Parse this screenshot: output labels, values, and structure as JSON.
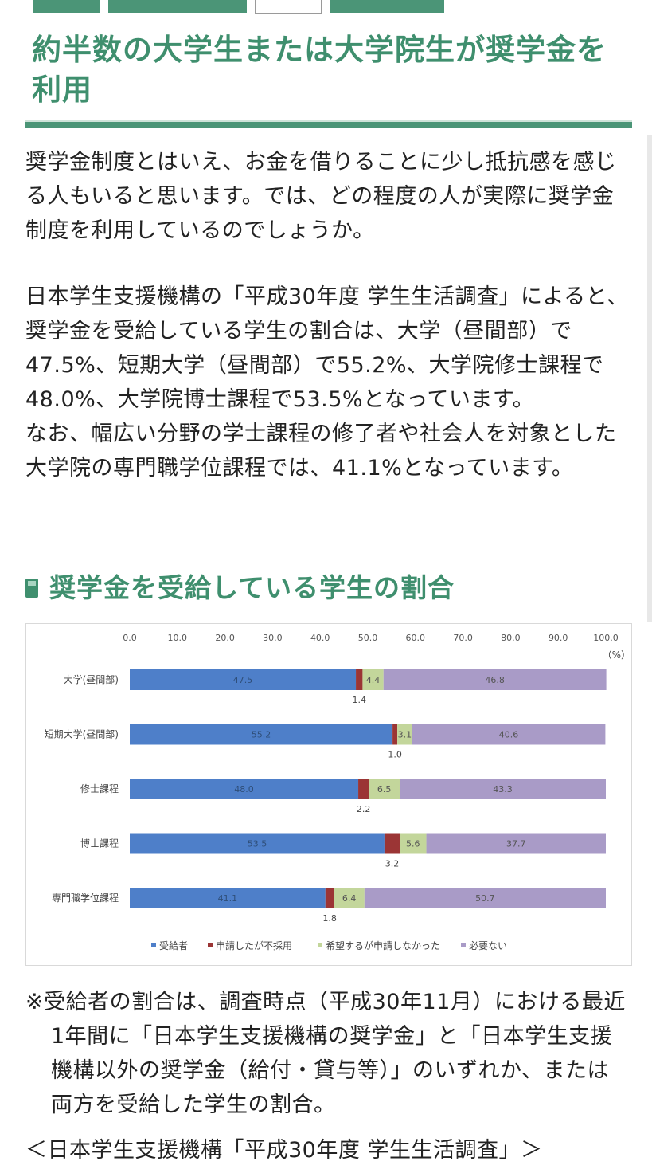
{
  "page_title": "約半数の大学生または大学院生が奨学金を利用",
  "paragraph1": "奨学金制度とはいえ、お金を借りることに少し抵抗感を感じる人もいると思います。では、どの程度の人が実際に奨学金制度を利用しているのでしょうか。",
  "paragraph2_lines": [
    "日本学生支援機構の「平成30年度 学生生活調査」によると、奨学金を受給している学生の割合は、大学（昼間部）で47.5%、短期大学（昼間部）で55.2%、大学院修士課程で48.0%、大学院博士課程で53.5%となっています。",
    "なお、幅広い分野の学士課程の修了者や社会人を対象とした大学院の専門職学位課程では、41.1%となっています。"
  ],
  "section_title": "奨学金を受給している学生の割合",
  "chart_data": {
    "type": "bar",
    "orientation": "horizontal",
    "stacked": true,
    "title": "",
    "xlabel": "",
    "ylabel": "",
    "unit_label": "（%）",
    "xlim": [
      0,
      100
    ],
    "x_ticks": [
      "0.0",
      "10.0",
      "20.0",
      "30.0",
      "40.0",
      "50.0",
      "60.0",
      "70.0",
      "80.0",
      "90.0",
      "100.0"
    ],
    "categories": [
      "大学(昼間部)",
      "短期大学(昼間部)",
      "修士課程",
      "博士課程",
      "専門職学位課程"
    ],
    "series": [
      {
        "name": "受給者",
        "color": "#4e7fc9",
        "values": [
          47.5,
          55.2,
          48.0,
          53.5,
          41.1
        ]
      },
      {
        "name": "申請したが不採用",
        "color": "#9b3535",
        "values": [
          1.4,
          1.0,
          2.2,
          3.2,
          1.8
        ]
      },
      {
        "name": "希望するが申請しなかった",
        "color": "#c3d69b",
        "values": [
          4.4,
          3.1,
          6.5,
          5.6,
          6.4
        ]
      },
      {
        "name": "必要ない",
        "color": "#a99bc7",
        "values": [
          46.8,
          40.6,
          43.3,
          37.7,
          50.7
        ]
      }
    ],
    "legend_position": "bottom",
    "grid": false
  },
  "note": "※受給者の割合は、調査時点（平成30年11月）における最近1年間に「日本学生支援機構の奨学金」と「日本学生支援機構以外の奨学金（給付・貸与等）」のいずれか、または両方を受給した学生の割合。",
  "source": "＜日本学生支援機構「平成30年度 学生生活調査」＞",
  "colors": {
    "accent": "#3f8f6e",
    "accent_dark": "#4b9577"
  }
}
